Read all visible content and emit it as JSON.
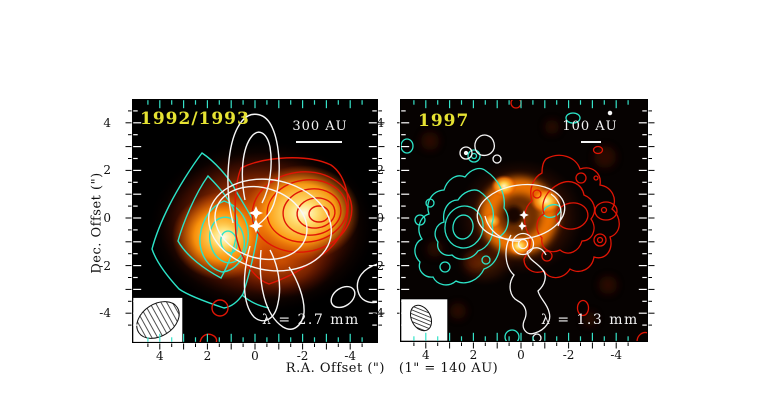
{
  "figure": {
    "xlabel": "R.A. Offset (\")   (1\" = 140 AU)",
    "ylabel": "Dec. Offset (\")",
    "colors": {
      "page_background": "#ffffff",
      "panel_background": "#000000",
      "blueshifted_contours": "#2ce4c8",
      "redshifted_contours": "#e01505",
      "white_contours": "#f7f7f7",
      "epoch_label": "#e6e332",
      "scale_text": "#f5f5f5",
      "tick_top_bottom": "#35e3c9",
      "tick_side": "#ffffff",
      "frame": "#000000",
      "continuum_peak": "#fff3c4",
      "continuum_mid": "#ff8c00"
    },
    "panels": [
      {
        "epoch": "1992/1993",
        "scalebar": "300 AU",
        "wavelength": "λ = 2.7 mm",
        "x_ticks": [
          "4",
          "2",
          "0",
          "-2",
          "-4"
        ],
        "x_tick_values": [
          4,
          2,
          0,
          -2,
          -4
        ],
        "y_ticks": [
          "4",
          "2",
          "0",
          "-2",
          "-4"
        ],
        "y_tick_values": [
          4,
          2,
          0,
          -2,
          -4
        ]
      },
      {
        "epoch": "1997",
        "scalebar": "100 AU",
        "wavelength": "λ = 1.3 mm",
        "x_ticks": [
          "4",
          "2",
          "0",
          "-2",
          "-4"
        ],
        "x_tick_values": [
          4,
          2,
          0,
          -2,
          -4
        ],
        "y_ticks": [
          "4",
          "2",
          "0",
          "-2",
          "-4"
        ],
        "y_tick_values": [
          4,
          2,
          0,
          -2,
          -4
        ]
      }
    ]
  },
  "chart_data": {
    "type": "heatmap",
    "subtype": "interferometric contour maps over color continuum image",
    "xlabel": "R.A. Offset (\")   (1\" = 140 AU)",
    "ylabel": "Dec. Offset (\")",
    "panels": [
      {
        "label": "1992/1993",
        "wavelength": "2.7 mm",
        "scale_bar": "300 AU",
        "x_range_arcsec": [
          5,
          -5
        ],
        "y_range_arcsec": [
          -5,
          5
        ],
        "x_ticks": [
          4,
          2,
          0,
          -2,
          -4
        ],
        "y_ticks": [
          4,
          2,
          0,
          -2,
          -4
        ],
        "layers": [
          {
            "series": "dust continuum (orange color image)",
            "peaks_arcsec": [
              [
                1.3,
                -0.8
              ],
              [
                -2.0,
                0.2
              ]
            ]
          },
          {
            "series": "blueshifted lobe (cyan contours)",
            "center_arcsec": [
              1.3,
              -0.8
            ],
            "levels": 5,
            "side": "east"
          },
          {
            "series": "redshifted lobe (red contours)",
            "center_arcsec": [
              -2.2,
              0.3
            ],
            "levels": 6,
            "side": "west"
          },
          {
            "series": "white contours (north-south lobes)",
            "extent_arcsec": [
              [
                0.2,
                4.2
              ],
              [
                -0.6,
                -4.4
              ]
            ]
          },
          {
            "series": "binary star markers",
            "positions_arcsec": [
              [
                0.0,
                0.2
              ],
              [
                -0.05,
                -0.3
              ]
            ]
          }
        ]
      },
      {
        "label": "1997",
        "wavelength": "1.3 mm",
        "scale_bar": "100 AU",
        "x_range_arcsec": [
          5,
          -5
        ],
        "y_range_arcsec": [
          -5,
          5
        ],
        "x_ticks": [
          4,
          2,
          0,
          -2,
          -4
        ],
        "y_ticks": [
          4,
          2,
          0,
          -2,
          -4
        ],
        "layers": [
          {
            "series": "dust continuum ring (orange color image)",
            "center_arcsec": [
              0.1,
              0.0
            ]
          },
          {
            "series": "blueshifted lobe (cyan contours)",
            "center_arcsec": [
              2.5,
              -0.4
            ],
            "levels": 5,
            "side": "east"
          },
          {
            "series": "redshifted lobe (red contours)",
            "center_arcsec": [
              -2.1,
              0.0
            ],
            "levels": 4,
            "side": "west"
          },
          {
            "series": "white contours (ring + southern tail)",
            "extent_arcsec": [
              [
                0.0,
                0.3
              ],
              [
                -1.2,
                -5.0
              ]
            ]
          },
          {
            "series": "binary star markers",
            "positions_arcsec": [
              [
                -0.1,
                0.1
              ],
              [
                0.0,
                -0.35
              ]
            ]
          }
        ]
      }
    ]
  }
}
